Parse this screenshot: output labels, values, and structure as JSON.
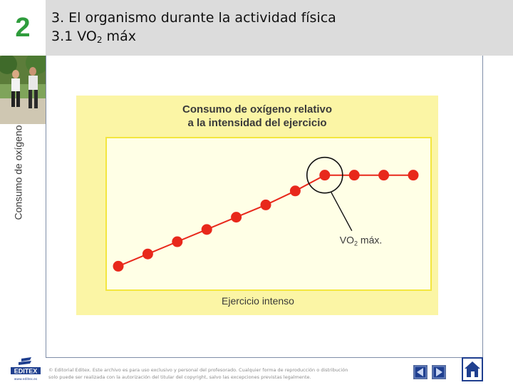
{
  "header": {
    "chapter_number": "2",
    "title": "3. El organismo durante la actividad física",
    "subtitle_prefix": "3.1 VO",
    "subtitle_sub": "2",
    "subtitle_suffix": " máx"
  },
  "chart_data": {
    "type": "line",
    "title_line1": "Consumo de oxígeno relativo",
    "title_line2": "a la intensidad del ejercicio",
    "xlabel": "Ejercicio intenso",
    "ylabel": "Consumo de oxígeno",
    "x": [
      1,
      2,
      3,
      4,
      5,
      6,
      7,
      8,
      9,
      10,
      11
    ],
    "series": [
      {
        "values": [
          1.0,
          1.7,
          2.4,
          3.1,
          3.8,
          4.5,
          5.3,
          6.2,
          6.2,
          6.2,
          6.2
        ]
      }
    ],
    "ylim": [
      0,
      7
    ],
    "grid": false,
    "annotation": {
      "text_prefix": "VO",
      "text_sub": "2",
      "text_suffix": " máx.",
      "point_index": 7
    },
    "colors": {
      "point": "#e8281b",
      "line": "#e8281b",
      "panel": "#fbf5a5",
      "plot_bg": "#ffffe6",
      "plot_border": "#f3e63f"
    }
  },
  "footer": {
    "logo_text": "EDITEX",
    "logo_url_text": "www.editex.es",
    "copyright_line1": "© Editorial Editex. Este archivo es para uso exclusivo y personal del profesorado. Cualquier forma de reproducción o distribución",
    "copyright_line2": "solo puede ser realizada con la autorización del titular del copyright, salvo las excepciones previstas legalmente."
  },
  "nav": {
    "prev_icon": "triangle-left-icon",
    "next_icon": "triangle-right-icon",
    "home_icon": "home-icon"
  }
}
